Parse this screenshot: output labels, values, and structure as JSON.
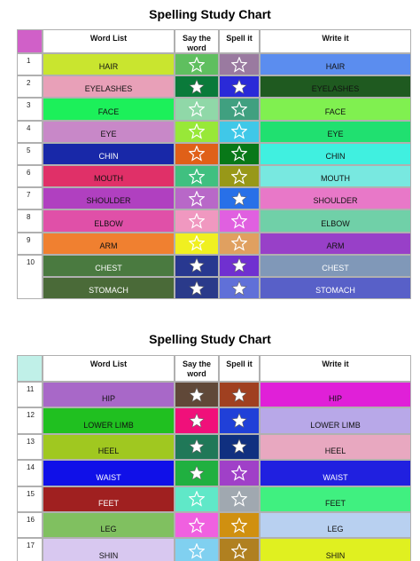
{
  "tables": [
    {
      "title": "Spelling Study Chart",
      "headers": [
        "Word List",
        "Say the word",
        "Spell it",
        "Write it"
      ],
      "rows": [
        {
          "number": "1",
          "word": "HAIR",
          "write": "HAIR"
        },
        {
          "number": "2",
          "word": "EYELASHES",
          "write": "EYELASHES"
        },
        {
          "number": "3",
          "word": "FACE",
          "write": "FACE"
        },
        {
          "number": "4",
          "word": "EYE",
          "write": "EYE"
        },
        {
          "number": "5",
          "word": "CHIN",
          "write": "CHIN"
        },
        {
          "number": "6",
          "word": "MOUTH",
          "write": "MOUTH"
        },
        {
          "number": "7",
          "word": "SHOULDER",
          "write": "SHOULDER"
        },
        {
          "number": "8",
          "word": "ELBOW",
          "write": "ELBOW"
        },
        {
          "number": "9",
          "word": "ARM",
          "write": "ARM"
        },
        {
          "number": "10",
          "word": "CHEST",
          "write": "CHEST"
        },
        {
          "word": "STOMACH",
          "write": "STOMACH"
        }
      ]
    },
    {
      "title": "Spelling Study Chart",
      "headers": [
        "Word List",
        "Say the word",
        "Spell it",
        "Write it"
      ],
      "rows": [
        {
          "number": "11",
          "word": "HIP",
          "write": "HIP"
        },
        {
          "number": "12",
          "word": "LOWER LIMB",
          "write": "LOWER LIMB"
        },
        {
          "number": "13",
          "word": "HEEL",
          "write": "HEEL"
        },
        {
          "number": "14",
          "word": "WAIST",
          "write": "WAIST"
        },
        {
          "number": "15",
          "word": "FEET",
          "write": "FEET"
        },
        {
          "number": "16",
          "word": "LEG",
          "write": "LEG"
        },
        {
          "number": "17",
          "word": "SHIN",
          "write": "SHIN"
        }
      ]
    }
  ]
}
